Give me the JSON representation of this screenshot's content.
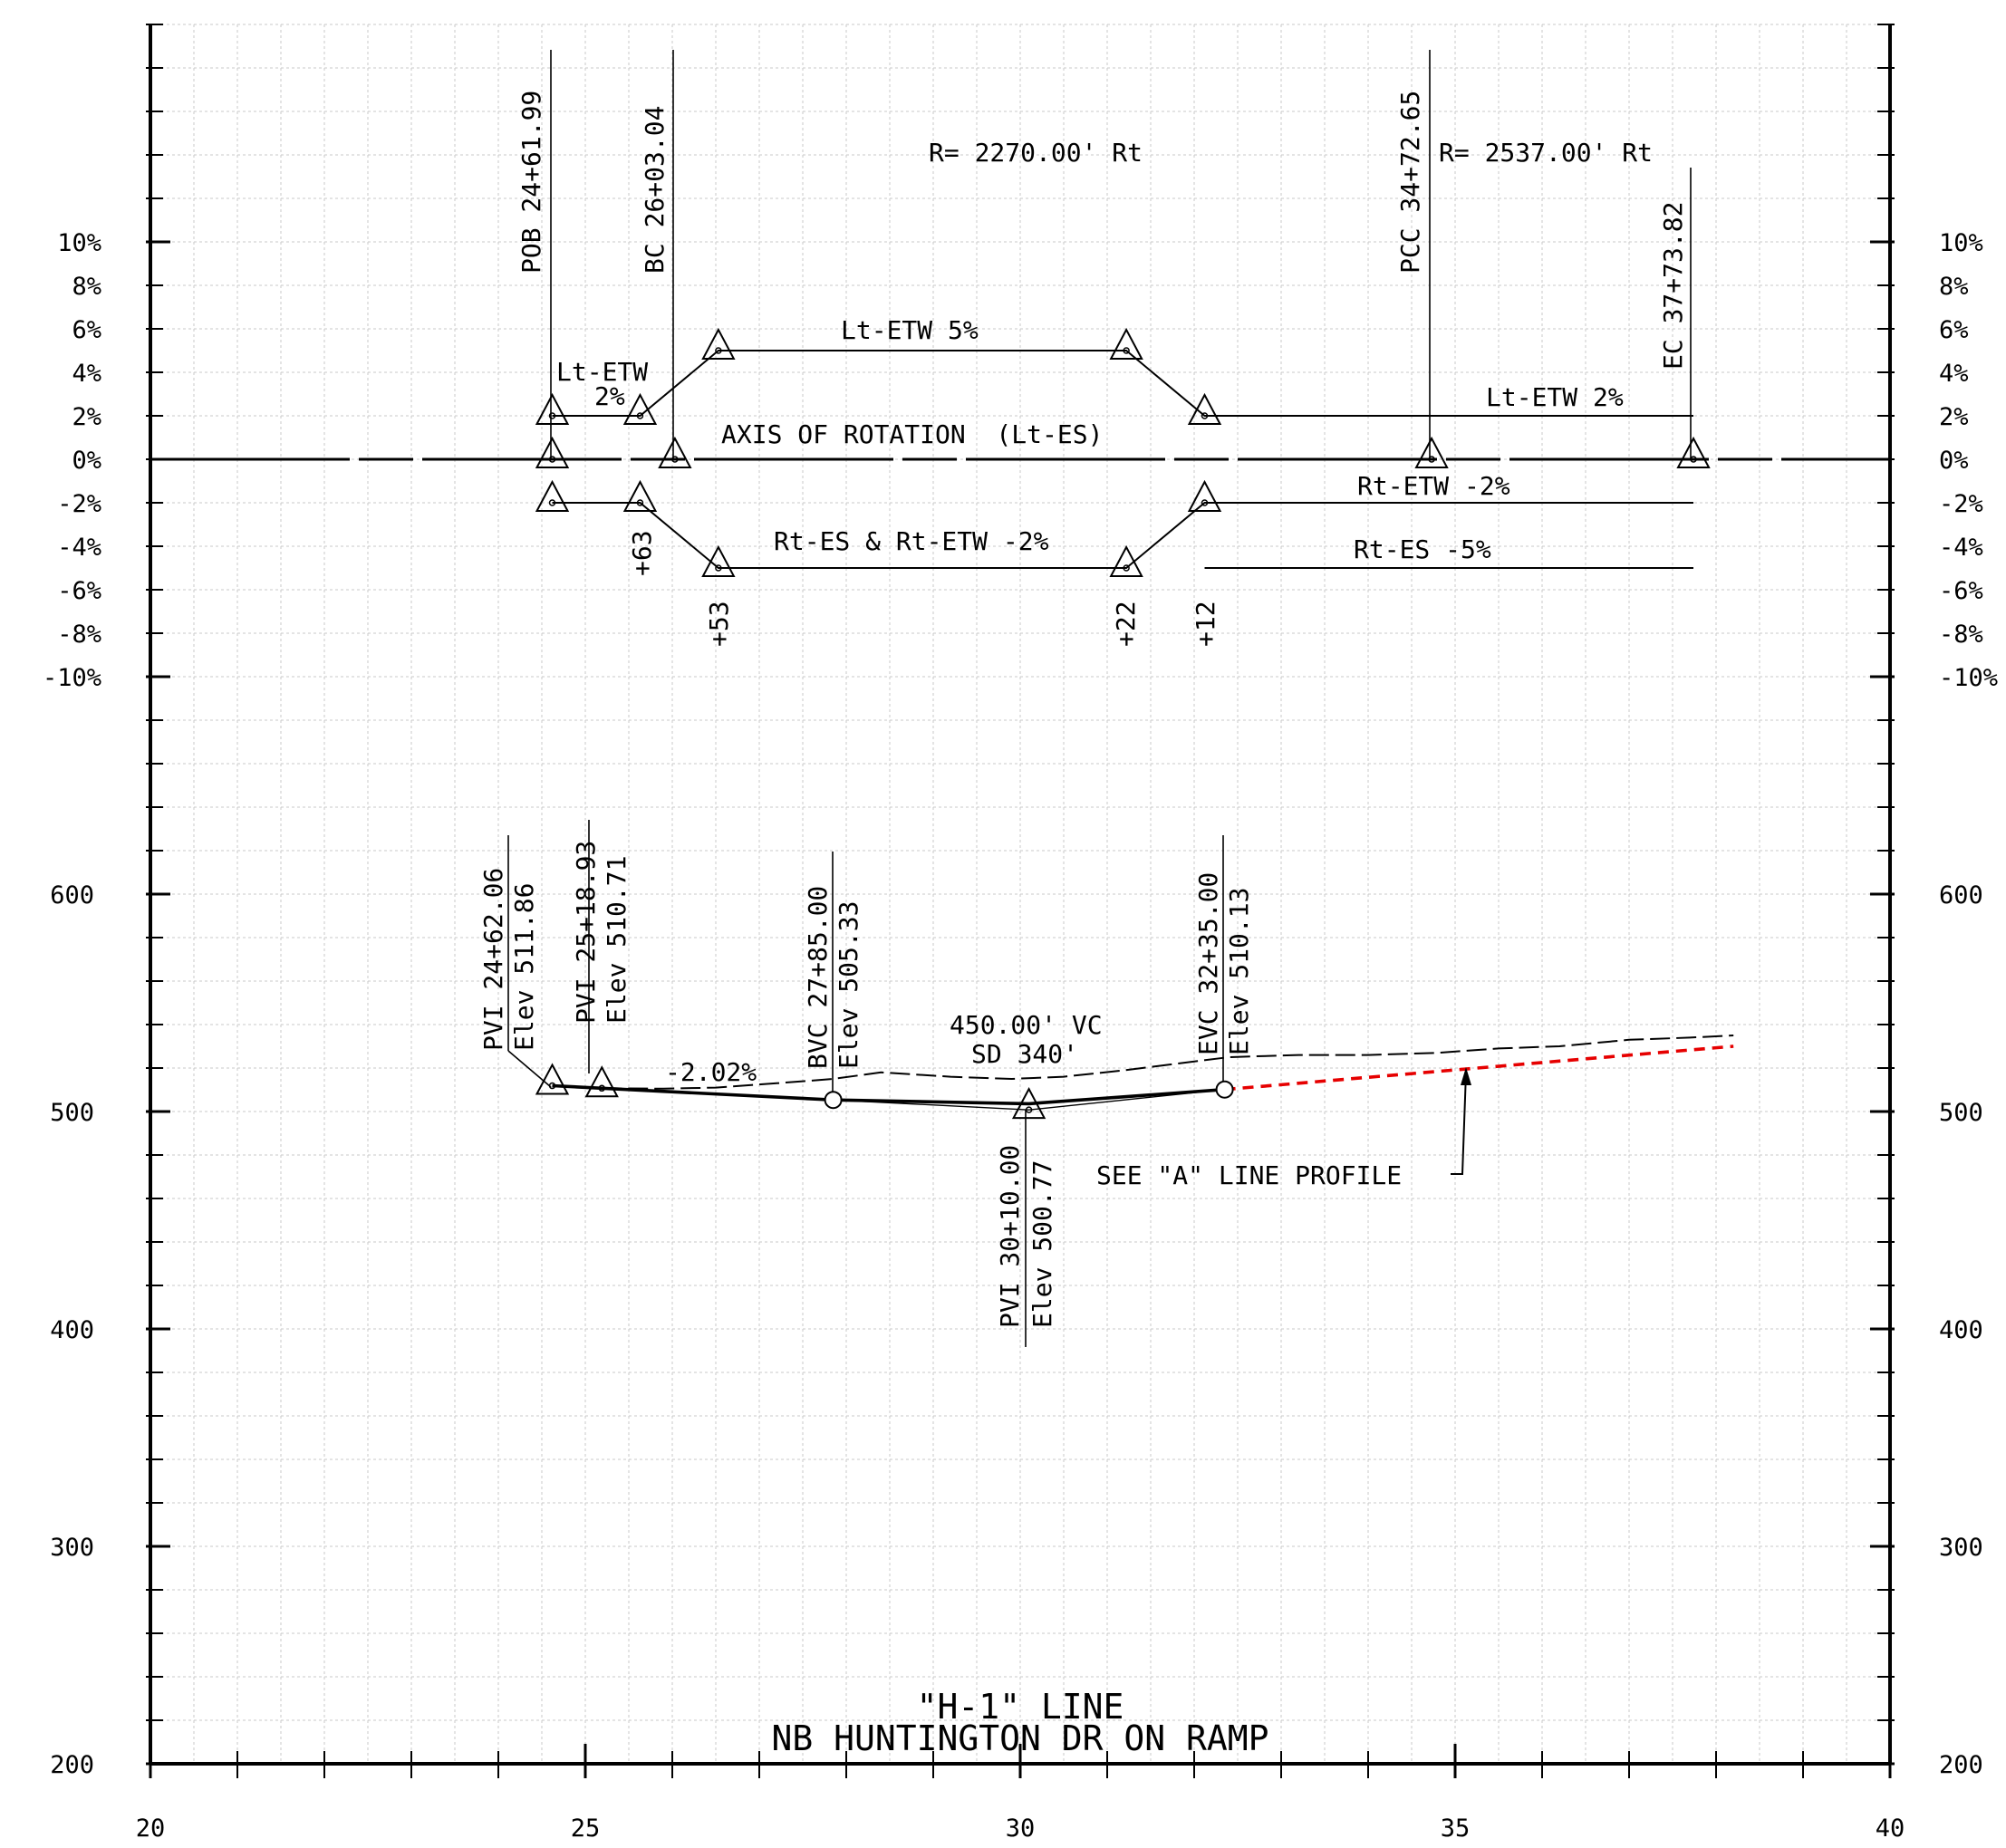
{
  "drawing": {
    "title_line1": "\"H-1\" LINE",
    "title_line2": "NB HUNTINGTON DR ON RAMP"
  },
  "axes": {
    "x_ticks": [
      "20",
      "25",
      "30",
      "35",
      "40"
    ],
    "x_range": [
      20,
      40
    ],
    "super_ticks": [
      "10%",
      "8%",
      "6%",
      "4%",
      "2%",
      "0%",
      "-2%",
      "-4%",
      "-6%",
      "-8%",
      "-10%"
    ],
    "super_range": [
      -10,
      10
    ],
    "elev_ticks": [
      "600",
      "500",
      "400",
      "300",
      "200"
    ],
    "elev_range": [
      200,
      600
    ]
  },
  "superelevation": {
    "station_labels": {
      "pob": "POB 24+61.99",
      "bc": "BC 26+03.04",
      "pcc": "PCC 34+72.65",
      "ec": "EC 37+73.82"
    },
    "curve_labels": {
      "curve1": "R= 2270.00' Rt",
      "curve2": "R= 2537.00' Rt"
    },
    "axis_label": "AXIS OF ROTATION  (Lt-ES)",
    "edge_labels": {
      "lt_etw_a": "Lt-ETW",
      "lt_etw_a_pct": "2%",
      "lt_etw_5": "Lt-ETW 5%",
      "lt_etw_2": "Lt-ETW 2%",
      "rt_etw_m2": "Rt-ETW -2%",
      "rt_es_etw": "Rt-ES & Rt-ETW -2%",
      "rt_es_m5": "Rt-ES -5%"
    },
    "plus_labels": {
      "p63": "+63",
      "p53": "+53",
      "p22": "+22",
      "p12": "+12"
    },
    "lt_etw_line": [
      [
        24.62,
        2
      ],
      [
        25.63,
        2
      ],
      [
        26.53,
        5
      ],
      [
        31.22,
        5
      ],
      [
        32.12,
        2
      ],
      [
        37.74,
        2
      ]
    ],
    "rt_line": [
      [
        24.62,
        -2
      ],
      [
        25.63,
        -2
      ],
      [
        26.53,
        -5
      ],
      [
        31.22,
        -5
      ],
      [
        32.12,
        -2
      ],
      [
        37.74,
        -2
      ]
    ],
    "rt_es_tail": [
      [
        32.12,
        -5
      ],
      [
        37.74,
        -5
      ]
    ],
    "axis_markers": [
      [
        24.62,
        0
      ],
      [
        26.03,
        0
      ],
      [
        34.73,
        0
      ],
      [
        37.74,
        0
      ]
    ],
    "edge_markers": [
      [
        24.62,
        2
      ],
      [
        25.63,
        2
      ],
      [
        26.53,
        5
      ],
      [
        31.22,
        5
      ],
      [
        32.12,
        2
      ],
      [
        24.62,
        -2
      ],
      [
        25.63,
        -2
      ],
      [
        26.53,
        -5
      ],
      [
        31.22,
        -5
      ],
      [
        32.12,
        -2
      ]
    ]
  },
  "profile": {
    "pvi_labels": {
      "pvi1_sta": "PVI 24+62.06",
      "pvi1_elev": "Elev 511.86",
      "pvi2_sta": "PVI 25+18.93",
      "pvi2_elev": "Elev 510.71",
      "bvc_sta": "BVC 27+85.00",
      "bvc_elev": "Elev 505.33",
      "evc_sta": "EVC 32+35.00",
      "evc_elev": "Elev 510.13",
      "pvi3_sta": "PVI 30+10.00",
      "pvi3_elev": "Elev 500.77"
    },
    "grade_label": "-2.02%",
    "vc_label": "450.00' VC",
    "sd_label": "SD 340'",
    "note_label": "SEE \"A\" LINE PROFILE",
    "grade_line": [
      [
        24.62,
        511.86
      ],
      [
        25.19,
        510.71
      ],
      [
        27.85,
        505.33
      ],
      [
        30.1,
        503.6
      ],
      [
        32.35,
        510.13
      ]
    ],
    "tangent_line": [
      [
        27.85,
        505.33
      ],
      [
        30.1,
        500.77
      ],
      [
        32.35,
        510.13
      ]
    ],
    "existing_ground": [
      [
        25.19,
        510.71
      ],
      [
        25.9,
        510.5
      ],
      [
        26.5,
        511
      ],
      [
        27.2,
        513
      ],
      [
        27.85,
        515
      ],
      [
        28.4,
        518
      ],
      [
        29.2,
        516
      ],
      [
        29.9,
        515
      ],
      [
        30.5,
        516
      ],
      [
        31.2,
        519
      ],
      [
        31.8,
        522
      ],
      [
        32.4,
        525
      ],
      [
        33.2,
        526
      ],
      [
        34.0,
        526
      ],
      [
        34.8,
        527
      ],
      [
        35.5,
        529
      ],
      [
        36.2,
        530
      ],
      [
        37.0,
        533
      ],
      [
        37.7,
        534
      ],
      [
        38.2,
        535
      ]
    ],
    "a_line": [
      [
        32.35,
        510.13
      ],
      [
        38.2,
        530
      ]
    ],
    "pvi_markers": [
      [
        24.62,
        511.86
      ],
      [
        25.19,
        510.71
      ],
      [
        30.1,
        500.77
      ]
    ],
    "vc_markers": [
      [
        27.85,
        505.33
      ],
      [
        32.35,
        510.13
      ]
    ]
  },
  "colors": {
    "ink": "#000000",
    "grid": "#c8c8c8",
    "a_line": "#e60000"
  }
}
